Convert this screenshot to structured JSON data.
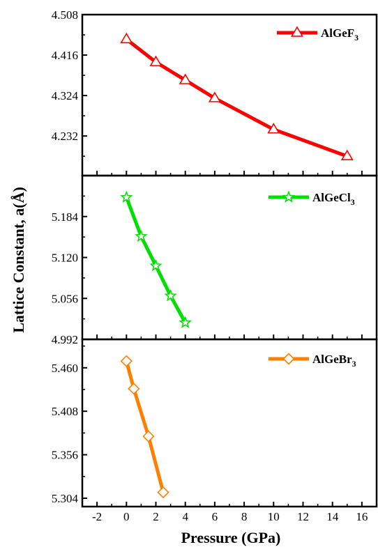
{
  "chart_data": {
    "type": "line",
    "xlabel": "Pressure (GPa)",
    "ylabel": "Lattice Constant, a(Å)",
    "xlim": [
      -3,
      17
    ],
    "x_ticks": [
      -2,
      0,
      2,
      4,
      6,
      8,
      10,
      12,
      14,
      16
    ],
    "panels": [
      {
        "id": "top",
        "legend": {
          "base": "AlGeF",
          "sub": "3"
        },
        "color": "#ff0000",
        "marker": "triangle",
        "ylim": [
          4.142,
          4.508
        ],
        "y_ticks": [
          4.232,
          4.324,
          4.416,
          4.508
        ],
        "x": [
          0,
          2,
          4,
          6,
          10,
          15
        ],
        "y": [
          4.452,
          4.4,
          4.359,
          4.318,
          4.247,
          4.186
        ]
      },
      {
        "id": "middle",
        "legend": {
          "base": "AlGeCl",
          "sub": "3"
        },
        "color": "#00e000",
        "marker": "star",
        "ylim": [
          4.992,
          5.248
        ],
        "y_ticks": [
          4.992,
          5.056,
          5.12,
          5.184
        ],
        "x": [
          0,
          1,
          2,
          3,
          4
        ],
        "y": [
          5.214,
          5.153,
          5.107,
          5.06,
          5.018
        ]
      },
      {
        "id": "bottom",
        "legend": {
          "base": "AlGeBr",
          "sub": "3"
        },
        "color": "#ff8000",
        "marker": "diamond",
        "ylim": [
          5.294,
          5.494
        ],
        "y_ticks": [
          5.304,
          5.356,
          5.408,
          5.46
        ],
        "x": [
          0,
          0.5,
          1.5,
          2.5
        ],
        "y": [
          5.468,
          5.435,
          5.378,
          5.311
        ]
      }
    ]
  }
}
